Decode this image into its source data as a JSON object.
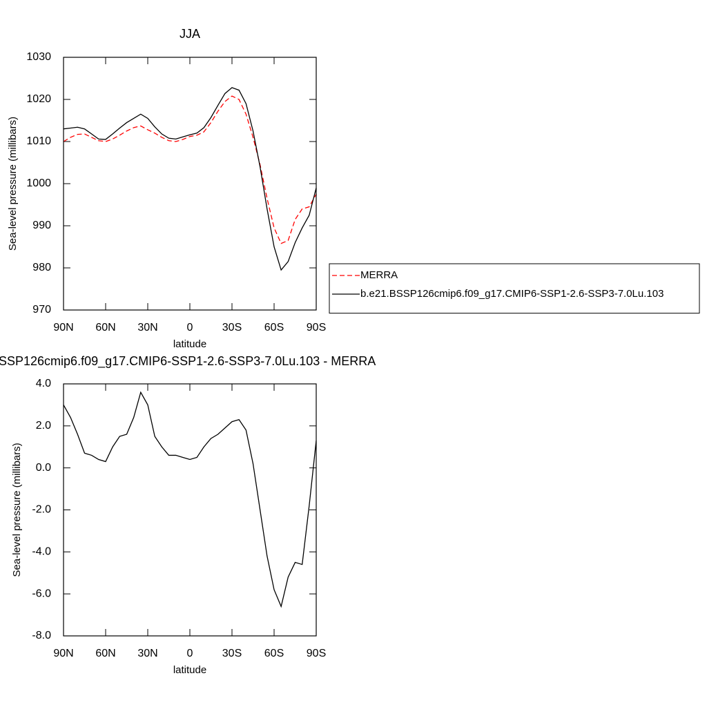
{
  "chart_data": [
    {
      "type": "line",
      "title": "JJA",
      "xlabel": "latitude",
      "ylabel": "Sea-level pressure (millibars)",
      "x": [
        90,
        85,
        80,
        75,
        70,
        65,
        60,
        55,
        50,
        45,
        40,
        35,
        30,
        25,
        20,
        15,
        10,
        5,
        0,
        -5,
        -10,
        -15,
        -20,
        -25,
        -30,
        -35,
        -40,
        -45,
        -50,
        -55,
        -60,
        -65,
        -70,
        -75,
        -80,
        -85,
        -90
      ],
      "xlim": [
        90,
        -90
      ],
      "xticks": [
        {
          "value": 90,
          "label": "90N"
        },
        {
          "value": 60,
          "label": "60N"
        },
        {
          "value": 30,
          "label": "30N"
        },
        0,
        {
          "value": -30,
          "label": "30S"
        },
        {
          "value": -60,
          "label": "60S"
        },
        {
          "value": -90,
          "label": "90S"
        }
      ],
      "ylim": [
        970,
        1030
      ],
      "yticks": [
        970,
        980,
        990,
        1000,
        1010,
        1020,
        1030
      ],
      "legend": "right",
      "series": [
        {
          "name": "MERRA",
          "color": "#ff0000",
          "line_style": "dashed",
          "values": [
            1010,
            1011,
            1011.7,
            1011.8,
            1011,
            1010.2,
            1010,
            1010.6,
            1011.5,
            1012.5,
            1013.3,
            1013.7,
            1012.8,
            1012,
            1011,
            1010.2,
            1010,
            1010.5,
            1011.2,
            1011.5,
            1012.3,
            1014.5,
            1017.2,
            1019.5,
            1020.8,
            1020,
            1016.5,
            1011,
            1004.5,
            996.5,
            989.5,
            985.8,
            986.5,
            991.5,
            994,
            994.5,
            997.5
          ]
        },
        {
          "name": "b.e21.BSSP126cmip6.f09_g17.CMIP6-SSP1-2.6-SSP3-7.0Lu.103",
          "color": "#000000",
          "line_style": "solid",
          "values": [
            1013,
            1013.2,
            1013.4,
            1013,
            1011.8,
            1010.6,
            1010.5,
            1011.8,
            1013.2,
            1014.5,
            1015.5,
            1016.5,
            1015.5,
            1013.5,
            1011.8,
            1010.8,
            1010.6,
            1011.1,
            1011.6,
            1012,
            1013.3,
            1015.7,
            1018.6,
            1021.4,
            1022.8,
            1022.2,
            1019,
            1012.5,
            1004,
            994,
            985,
            979.5,
            981.5,
            986,
            989.5,
            992.5,
            999
          ]
        }
      ]
    },
    {
      "type": "line",
      "title": "SSP126cmip6.f09_g17.CMIP6-SSP1-2.6-SSP3-7.0Lu.103 - MERRA",
      "xlabel": "latitude",
      "ylabel": "Sea-level pressure (millibars)",
      "x": [
        90,
        85,
        80,
        75,
        70,
        65,
        60,
        55,
        50,
        45,
        40,
        35,
        30,
        25,
        20,
        15,
        10,
        5,
        0,
        -5,
        -10,
        -15,
        -20,
        -25,
        -30,
        -35,
        -40,
        -45,
        -50,
        -55,
        -60,
        -65,
        -70,
        -75,
        -80,
        -85,
        -90
      ],
      "xlim": [
        90,
        -90
      ],
      "xticks": [
        {
          "value": 90,
          "label": "90N"
        },
        {
          "value": 60,
          "label": "60N"
        },
        {
          "value": 30,
          "label": "30N"
        },
        0,
        {
          "value": -30,
          "label": "30S"
        },
        {
          "value": -60,
          "label": "60S"
        },
        {
          "value": -90,
          "label": "90S"
        }
      ],
      "ylim": [
        -8,
        4
      ],
      "yticks": [
        {
          "value": -8,
          "label": "-8.0"
        },
        {
          "value": -6,
          "label": "-6.0"
        },
        {
          "value": -4,
          "label": "-4.0"
        },
        {
          "value": -2,
          "label": "-2.0"
        },
        {
          "value": 0,
          "label": "0.0"
        },
        {
          "value": 2,
          "label": "2.0"
        },
        {
          "value": 4,
          "label": "4.0"
        }
      ],
      "series": [
        {
          "color": "#000000",
          "line_style": "solid",
          "values": [
            3.0,
            2.4,
            1.6,
            0.7,
            0.6,
            0.4,
            0.3,
            1.0,
            1.5,
            1.6,
            2.4,
            3.6,
            3.0,
            1.5,
            1.0,
            0.6,
            0.6,
            0.5,
            0.4,
            0.5,
            1.0,
            1.4,
            1.6,
            1.9,
            2.2,
            2.3,
            1.8,
            0.2,
            -2.0,
            -4.2,
            -5.8,
            -6.6,
            -5.2,
            -4.5,
            -4.6,
            -1.8,
            1.3
          ]
        }
      ]
    }
  ]
}
